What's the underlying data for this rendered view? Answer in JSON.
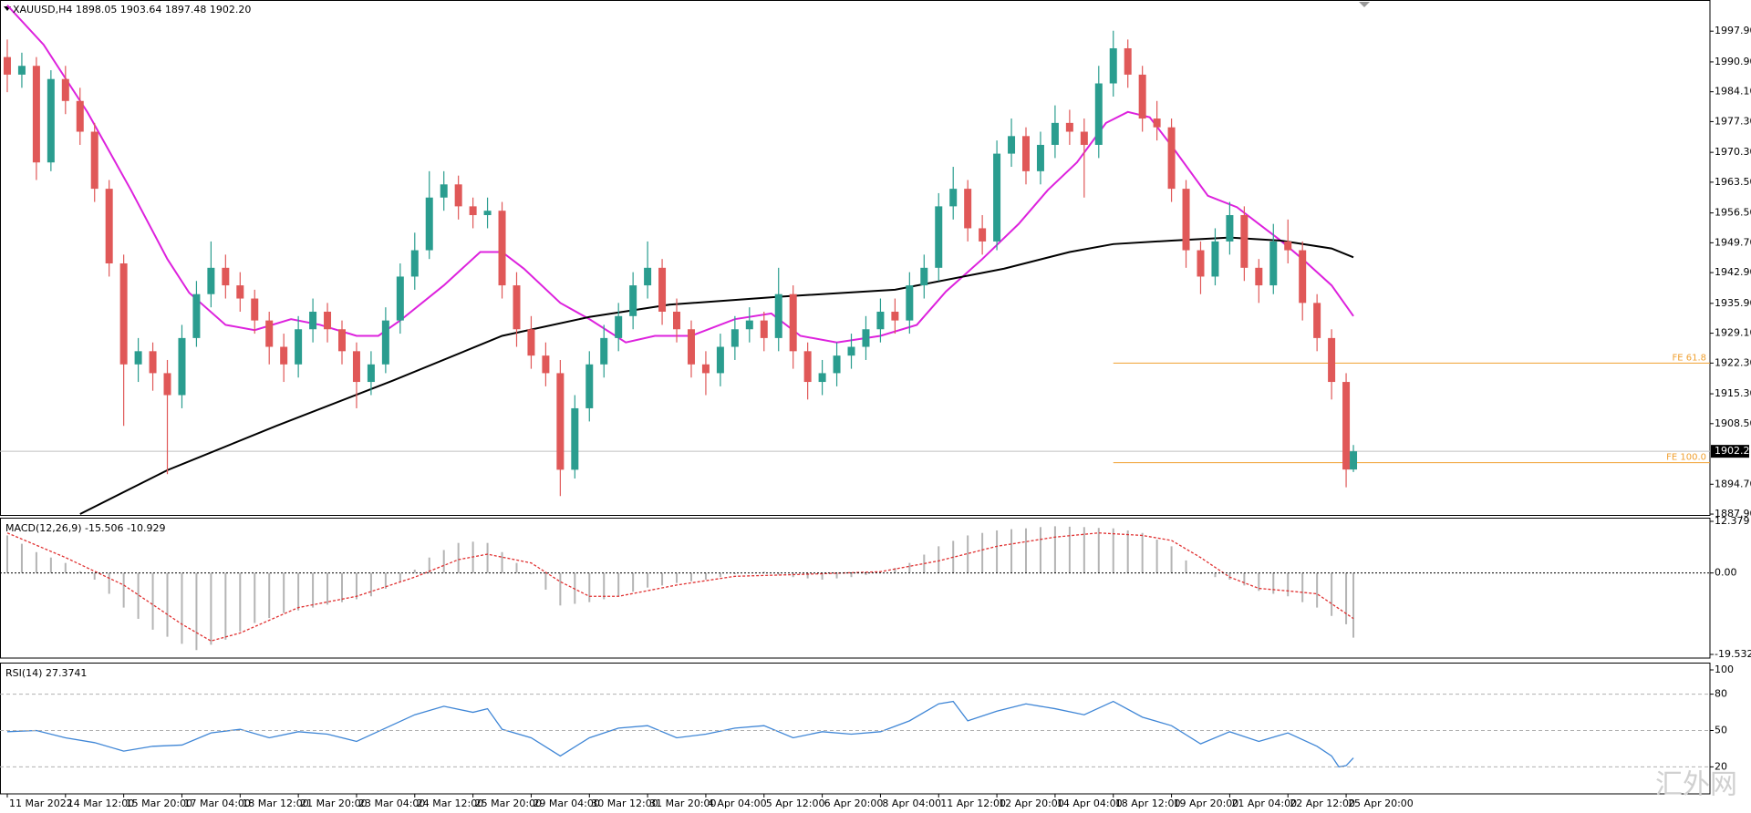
{
  "chart_data": [
    {
      "type": "candlestick",
      "title": "XAUUSD,H4  1898.05 1903.64 1897.48 1902.20",
      "up_color": "#2a9d8f",
      "down_color": "#e05858",
      "xlim": [
        -1,
        234
      ],
      "ylim": [
        1887.7,
        2005.0
      ],
      "x": [
        0,
        2,
        4,
        6,
        8,
        10,
        12,
        14,
        16,
        18,
        20,
        22,
        24,
        26,
        28,
        30,
        32,
        34,
        36,
        38,
        40,
        42,
        44,
        46,
        48,
        50,
        52,
        54,
        56,
        58,
        60,
        62,
        64,
        66,
        68,
        70,
        72,
        74,
        76,
        78,
        80,
        82,
        84,
        86,
        88,
        90,
        92,
        94,
        96,
        98,
        100,
        102,
        104,
        106,
        108,
        110,
        112,
        114,
        116,
        118,
        120,
        122,
        124,
        126,
        128,
        130,
        132,
        134,
        136,
        138,
        140,
        142,
        144,
        146,
        148,
        150,
        152,
        154,
        156,
        158,
        160,
        162,
        164,
        166,
        168,
        170,
        172,
        174,
        176,
        178,
        180,
        182,
        184,
        185
      ],
      "open": [
        1992,
        1988,
        1990,
        1968,
        1987,
        1982,
        1975,
        1962,
        1945,
        1922,
        1925,
        1920,
        1915,
        1928,
        1938,
        1944,
        1940,
        1937,
        1932,
        1926,
        1922,
        1930,
        1934,
        1930,
        1925,
        1918,
        1922,
        1932,
        1942,
        1948,
        1960,
        1963,
        1958,
        1956,
        1957,
        1940,
        1930,
        1924,
        1920,
        1898,
        1912,
        1922,
        1928,
        1933,
        1940,
        1944,
        1934,
        1930,
        1922,
        1920,
        1926,
        1930,
        1932,
        1928,
        1938,
        1925,
        1918,
        1920,
        1924,
        1926,
        1930,
        1934,
        1932,
        1940,
        1944,
        1958,
        1962,
        1953,
        1950,
        1970,
        1974,
        1966,
        1972,
        1977,
        1975,
        1972,
        1986,
        1994,
        1988,
        1978,
        1976,
        1962,
        1948,
        1942,
        1950,
        1956,
        1944,
        1940,
        1950,
        1948,
        1936,
        1928,
        1918,
        1898.05
      ],
      "high": [
        1996,
        1993,
        1992,
        1989,
        1990,
        1985,
        1977,
        1964,
        1947,
        1928,
        1927,
        1923,
        1931,
        1941,
        1950,
        1947,
        1943,
        1939,
        1934,
        1929,
        1933,
        1937,
        1936,
        1932,
        1927,
        1925,
        1935,
        1945,
        1952,
        1966,
        1966,
        1965,
        1960,
        1960,
        1959,
        1943,
        1933,
        1927,
        1923,
        1915,
        1925,
        1931,
        1936,
        1943,
        1950,
        1946,
        1937,
        1932,
        1925,
        1929,
        1933,
        1935,
        1934,
        1944,
        1940,
        1927,
        1923,
        1927,
        1929,
        1933,
        1937,
        1937,
        1943,
        1947,
        1961,
        1967,
        1964,
        1956,
        1973,
        1978,
        1976,
        1975,
        1981,
        1980,
        1978,
        1990,
        1998,
        1996,
        1990,
        1982,
        1978,
        1964,
        1950,
        1953,
        1959,
        1958,
        1946,
        1954,
        1955,
        1950,
        1938,
        1930,
        1920,
        1903.64
      ],
      "low": [
        1984,
        1985,
        1964,
        1966,
        1979,
        1972,
        1959,
        1942,
        1908,
        1918,
        1916,
        1897,
        1912,
        1926,
        1935,
        1937,
        1934,
        1929,
        1922,
        1918,
        1919,
        1927,
        1927,
        1922,
        1912,
        1915,
        1920,
        1929,
        1939,
        1946,
        1957,
        1955,
        1953,
        1953,
        1937,
        1926,
        1921,
        1917,
        1892,
        1896,
        1909,
        1919,
        1925,
        1930,
        1937,
        1931,
        1927,
        1919,
        1915,
        1917,
        1923,
        1927,
        1925,
        1925,
        1921,
        1914,
        1915,
        1917,
        1921,
        1923,
        1927,
        1929,
        1929,
        1937,
        1941,
        1955,
        1950,
        1947,
        1948,
        1967,
        1963,
        1963,
        1969,
        1972,
        1960,
        1969,
        1983,
        1985,
        1975,
        1973,
        1959,
        1944,
        1938,
        1940,
        1947,
        1941,
        1936,
        1938,
        1945,
        1932,
        1925,
        1914,
        1894,
        1897.48
      ],
      "close": [
        1988,
        1990,
        1968,
        1987,
        1982,
        1975,
        1962,
        1945,
        1922,
        1925,
        1920,
        1915,
        1928,
        1938,
        1944,
        1940,
        1937,
        1932,
        1926,
        1922,
        1930,
        1934,
        1930,
        1925,
        1918,
        1922,
        1932,
        1942,
        1948,
        1960,
        1963,
        1958,
        1956,
        1957,
        1940,
        1930,
        1924,
        1920,
        1898,
        1912,
        1922,
        1928,
        1933,
        1940,
        1944,
        1934,
        1930,
        1922,
        1920,
        1926,
        1930,
        1932,
        1928,
        1938,
        1925,
        1918,
        1920,
        1924,
        1926,
        1930,
        1934,
        1932,
        1940,
        1944,
        1958,
        1962,
        1953,
        1950,
        1970,
        1974,
        1966,
        1972,
        1977,
        1975,
        1972,
        1986,
        1994,
        1988,
        1978,
        1976,
        1962,
        1948,
        1942,
        1950,
        1956,
        1944,
        1940,
        1950,
        1948,
        1936,
        1928,
        1918,
        1898.05,
        1902.2
      ],
      "yticks": [
        {
          "value": 1997.9,
          "label": "1997.90"
        },
        {
          "value": 1990.9,
          "label": "1990.90"
        },
        {
          "value": 1984.1,
          "label": "1984.10"
        },
        {
          "value": 1977.3,
          "label": "1977.30"
        },
        {
          "value": 1970.3,
          "label": "1970.30"
        },
        {
          "value": 1963.5,
          "label": "1963.50"
        },
        {
          "value": 1956.5,
          "label": "1956.50"
        },
        {
          "value": 1949.7,
          "label": "1949.70"
        },
        {
          "value": 1942.9,
          "label": "1942.90"
        },
        {
          "value": 1935.9,
          "label": "1935.90"
        },
        {
          "value": 1929.1,
          "label": "1929.10"
        },
        {
          "value": 1922.3,
          "label": "1922.30"
        },
        {
          "value": 1915.3,
          "label": "1915.30"
        },
        {
          "value": 1908.5,
          "label": "1908.50"
        },
        {
          "value": 1894.7,
          "label": "1894.70"
        },
        {
          "value": 1887.9,
          "label": "1887.90"
        }
      ],
      "last_price": {
        "value": 1902.2,
        "label": "1902.20"
      },
      "xticks": [
        {
          "value": 0,
          "label": "11 Mar 2022"
        },
        {
          "value": 8,
          "label": "14 Mar 12:00"
        },
        {
          "value": 16,
          "label": "15 Mar 20:00"
        },
        {
          "value": 24,
          "label": "17 Mar 04:00"
        },
        {
          "value": 32,
          "label": "18 Mar 12:00"
        },
        {
          "value": 40,
          "label": "21 Mar 20:00"
        },
        {
          "value": 48,
          "label": "23 Mar 04:00"
        },
        {
          "value": 56,
          "label": "24 Mar 12:00"
        },
        {
          "value": 64,
          "label": "25 Mar 20:00"
        },
        {
          "value": 72,
          "label": "29 Mar 04:00"
        },
        {
          "value": 80,
          "label": "30 Mar 12:00"
        },
        {
          "value": 88,
          "label": "31 Mar 20:00"
        },
        {
          "value": 96,
          "label": "4 Apr 04:00"
        },
        {
          "value": 104,
          "label": "5 Apr 12:00"
        },
        {
          "value": 112,
          "label": "6 Apr 20:00"
        },
        {
          "value": 120,
          "label": "8 Apr 04:00"
        },
        {
          "value": 128,
          "label": "11 Apr 12:00"
        },
        {
          "value": 136,
          "label": "12 Apr 20:00"
        },
        {
          "value": 144,
          "label": "14 Apr 04:00"
        },
        {
          "value": 152,
          "label": "18 Apr 12:00"
        },
        {
          "value": 160,
          "label": "19 Apr 20:00"
        },
        {
          "value": 168,
          "label": "21 Apr 04:00"
        },
        {
          "value": 176,
          "label": "22 Apr 12:00"
        },
        {
          "value": 184,
          "label": "25 Apr 20:00"
        }
      ],
      "moving_averages": [
        {
          "color": "#dd22dd",
          "x": [
            0,
            5,
            11,
            17,
            22,
            25,
            30,
            34,
            39,
            43,
            48,
            51,
            54,
            60,
            65,
            68,
            71,
            76,
            80,
            85,
            89,
            94,
            100,
            105,
            109,
            114,
            120,
            125,
            129,
            134,
            139,
            143,
            147,
            151,
            154,
            157,
            160,
            165,
            169,
            172,
            175,
            178,
            182,
            185
          ],
          "values": [
            2003.8,
            1994.8,
            1979.5,
            1961.7,
            1946,
            1938.3,
            1931,
            1929.8,
            1932.3,
            1931,
            1928.5,
            1928.5,
            1932,
            1940,
            1947.6,
            1947.6,
            1943.8,
            1936,
            1932.3,
            1927,
            1928.5,
            1928.5,
            1932.3,
            1933.6,
            1928.5,
            1927,
            1928.5,
            1931,
            1938.6,
            1946,
            1954,
            1961.7,
            1968,
            1977,
            1979.5,
            1978.3,
            1971.8,
            1960.4,
            1957.8,
            1954,
            1950.2,
            1946,
            1940,
            1933
          ]
        },
        {
          "color": "#000000",
          "x": [
            10,
            22,
            37,
            53,
            68,
            80,
            91,
            106,
            122,
            137,
            146,
            152,
            160,
            168,
            175,
            182,
            185
          ],
          "values": [
            1887.9,
            1897.9,
            1908,
            1918.3,
            1928.5,
            1932.8,
            1935.6,
            1937.4,
            1939,
            1943.8,
            1947.6,
            1949.4,
            1950.2,
            1950.9,
            1950.2,
            1948.4,
            1946.4
          ]
        }
      ],
      "fe_levels": [
        {
          "label": "FE 61.8",
          "value": 1922.3,
          "start": 152,
          "color": "#f0a030"
        },
        {
          "label": "FE 100.0",
          "value": 1899.6,
          "start": 152,
          "color": "#f0a030"
        }
      ]
    },
    {
      "type": "macd",
      "title": "MACD(12,26,9) -15.506 -10.929",
      "xlim": [
        -1,
        234
      ],
      "ylim": [
        -19.532,
        12.379
      ],
      "yticks": [
        12.379,
        {
          "value": 0,
          "label": "0.00"
        },
        -19.532
      ],
      "levels": [
        0
      ],
      "histogram": {
        "color": "#b4b4b4",
        "x": [
          0,
          2,
          4,
          6,
          8,
          10,
          12,
          14,
          16,
          18,
          20,
          22,
          24,
          26,
          28,
          30,
          32,
          34,
          36,
          38,
          40,
          42,
          44,
          46,
          48,
          50,
          52,
          54,
          56,
          58,
          60,
          62,
          64,
          66,
          68,
          70,
          72,
          74,
          76,
          78,
          80,
          82,
          84,
          86,
          88,
          90,
          92,
          94,
          96,
          98,
          100,
          102,
          104,
          106,
          108,
          110,
          112,
          114,
          116,
          118,
          120,
          122,
          124,
          126,
          128,
          130,
          132,
          134,
          136,
          138,
          140,
          142,
          144,
          146,
          148,
          150,
          152,
          154,
          156,
          158,
          160,
          162,
          164,
          166,
          168,
          170,
          172,
          174,
          176,
          178,
          180,
          182,
          184,
          185
        ],
        "values": [
          9,
          7,
          5,
          3.7,
          2.4,
          0.4,
          -1.6,
          -5,
          -8.3,
          -11,
          -13.6,
          -15.3,
          -17,
          -18.5,
          -17.2,
          -16,
          -14,
          -12,
          -10.8,
          -9.6,
          -9,
          -8.3,
          -7.6,
          -7,
          -6.3,
          -5.6,
          -3.8,
          -2,
          0.8,
          3.7,
          5.5,
          7.2,
          7.5,
          7.2,
          5,
          2.4,
          -0.3,
          -4,
          -7.8,
          -7.4,
          -7,
          -6.3,
          -5.6,
          -4.5,
          -3.5,
          -3,
          -2.4,
          -2,
          -1.6,
          -1,
          -0.3,
          0,
          0.3,
          -0.4,
          -1,
          -1.3,
          -1.6,
          -1.3,
          -1,
          -0.5,
          0,
          1.2,
          2.4,
          4.4,
          6.4,
          7.7,
          9,
          9.6,
          10.2,
          10.5,
          10.7,
          11,
          11.2,
          11.1,
          11,
          10.8,
          10.7,
          10.2,
          9.6,
          8,
          6.4,
          3,
          -0.3,
          -1,
          -1.6,
          -3,
          -4.3,
          -5,
          -5.6,
          -7,
          -8.3,
          -10.3,
          -12.3,
          -15.506
        ]
      },
      "signal": {
        "color": "#e03030",
        "x": [
          0,
          8,
          16,
          24,
          28,
          32,
          40,
          48,
          56,
          62,
          66,
          72,
          76,
          80,
          84,
          92,
          100,
          110,
          120,
          128,
          136,
          144,
          150,
          156,
          160,
          164,
          168,
          172,
          176,
          180,
          185
        ],
        "values": [
          9.6,
          3.7,
          -2.9,
          -12.3,
          -16.3,
          -14.4,
          -8.3,
          -5.6,
          -1,
          3.2,
          4.5,
          2.4,
          -2.1,
          -5.6,
          -5.6,
          -2.9,
          -0.8,
          -0.3,
          0.3,
          2.9,
          6.4,
          8.6,
          9.6,
          9,
          7.8,
          3.7,
          -1,
          -3.7,
          -4.3,
          -5,
          -10.929
        ]
      }
    },
    {
      "type": "line",
      "title": "RSI(14) 27.3741",
      "xlim": [
        -1,
        234
      ],
      "ylim": [
        0,
        100
      ],
      "yticks": [
        100,
        80,
        50,
        20
      ],
      "levels": [
        80,
        50,
        20
      ],
      "color": "#3f86d6",
      "x": [
        0,
        4,
        8,
        12,
        16,
        20,
        24,
        28,
        32,
        36,
        40,
        44,
        48,
        52,
        56,
        60,
        64,
        66,
        68,
        72,
        76,
        80,
        84,
        88,
        92,
        96,
        100,
        104,
        108,
        112,
        116,
        120,
        124,
        128,
        130,
        132,
        136,
        140,
        144,
        148,
        152,
        156,
        160,
        164,
        168,
        172,
        176,
        180,
        182,
        183,
        184,
        185
      ],
      "values": [
        49,
        50,
        44,
        40,
        33,
        37,
        38,
        48,
        51,
        44,
        49,
        47,
        41,
        52,
        63,
        70,
        65,
        68,
        51,
        44,
        29,
        44,
        52,
        54,
        44,
        47,
        52,
        54,
        44,
        49,
        47,
        49,
        58,
        72,
        74,
        58,
        66,
        72,
        68,
        63,
        74,
        61,
        54,
        39,
        49,
        41,
        48,
        37,
        29,
        20,
        21,
        27.3741
      ]
    }
  ],
  "watermark": "汇外网"
}
